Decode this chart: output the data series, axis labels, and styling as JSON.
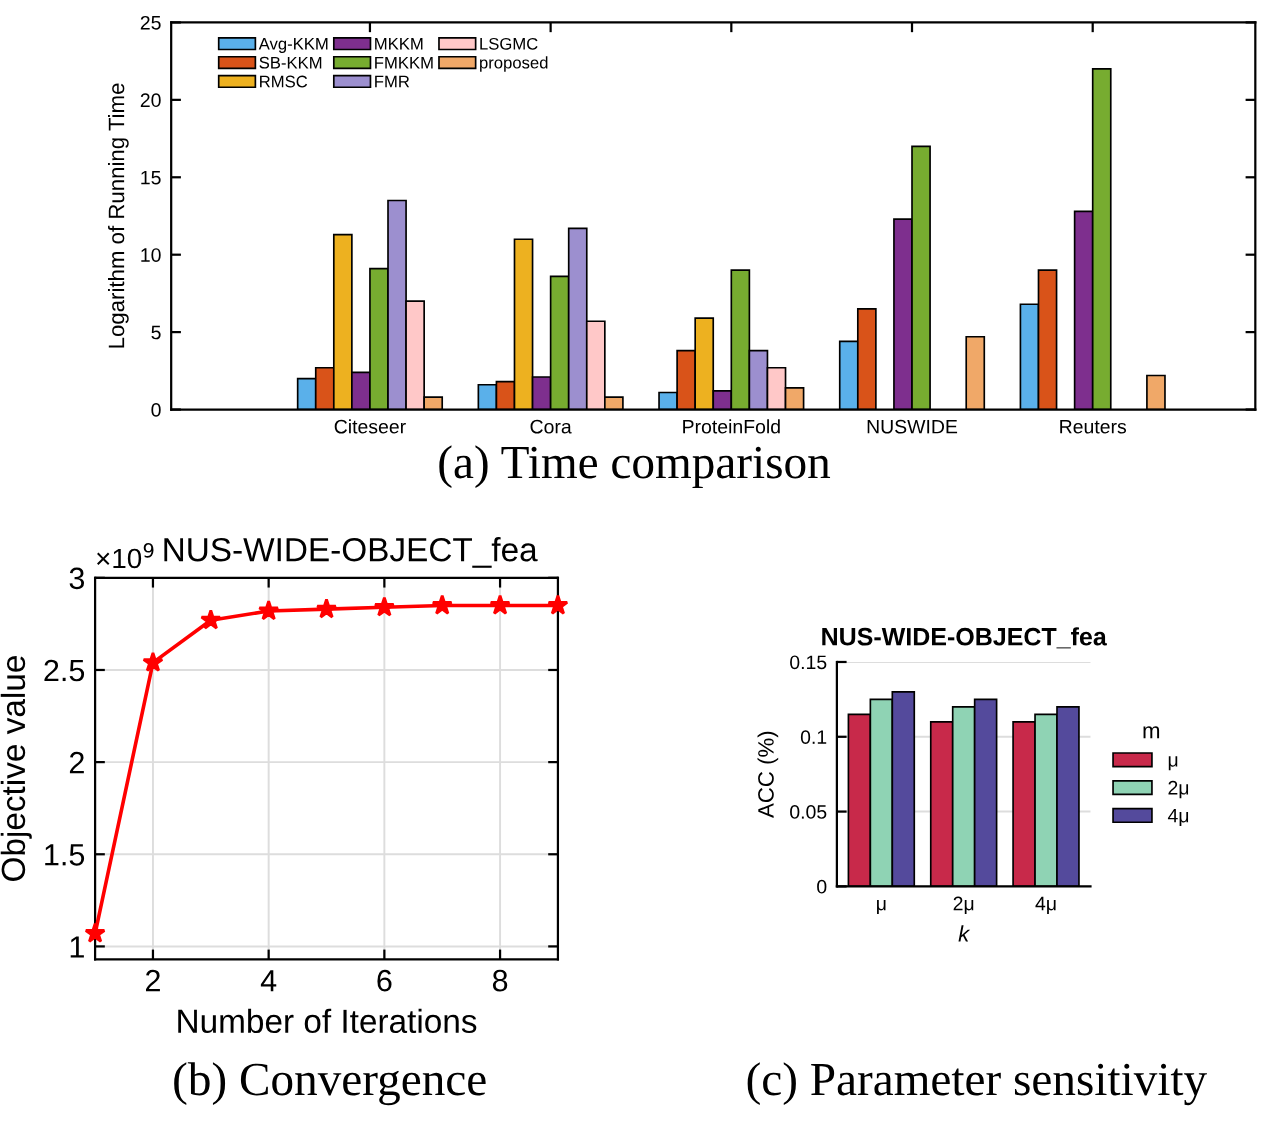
{
  "chart_data": [
    {
      "type": "bar",
      "ylabel": "Logarithm of Running Time",
      "categories": [
        "Citeseer",
        "Cora",
        "ProteinFold",
        "NUSWIDE",
        "Reuters"
      ],
      "series": [
        {
          "name": "Avg-KKM",
          "color": "#5ab0ea",
          "values": [
            2.0,
            1.6,
            1.1,
            4.4,
            6.8
          ]
        },
        {
          "name": "SB-KKM",
          "color": "#d95319",
          "values": [
            2.7,
            1.8,
            3.8,
            6.5,
            9.0
          ]
        },
        {
          "name": "RMSC",
          "color": "#edb120",
          "values": [
            11.3,
            11.0,
            5.9,
            null,
            null
          ]
        },
        {
          "name": "MKKM",
          "color": "#7e2f8e",
          "values": [
            2.4,
            2.1,
            1.2,
            12.3,
            12.8
          ]
        },
        {
          "name": "FMKKM",
          "color": "#77ac30",
          "values": [
            9.1,
            8.6,
            9.0,
            17.0,
            22.0
          ]
        },
        {
          "name": "FMR",
          "color": "#9c8fcf",
          "values": [
            13.5,
            11.7,
            3.8,
            null,
            null
          ]
        },
        {
          "name": "LSGMC",
          "color": "#ffc8c8",
          "values": [
            7.0,
            5.7,
            2.7,
            null,
            null
          ]
        },
        {
          "name": "proposed",
          "color": "#f0a868",
          "values": [
            0.8,
            0.8,
            1.4,
            4.7,
            2.2
          ]
        }
      ],
      "ylim": [
        0,
        25
      ],
      "yticks": [
        0,
        5,
        10,
        15,
        20,
        25
      ],
      "legend": "top left",
      "grid": false,
      "annotations": [
        "(a) Time comparison"
      ]
    },
    {
      "type": "line",
      "title": "NUS-WIDE-OBJECT_fea",
      "xlabel": "Number of Iterations",
      "ylabel": "Objective value",
      "x": [
        1,
        2,
        3,
        4,
        5,
        6,
        7,
        8,
        9
      ],
      "series": [
        {
          "color": "#ff0000",
          "values": [
            1.07,
            2.54,
            2.77,
            2.82,
            2.83,
            2.84,
            2.85,
            2.85,
            2.85
          ]
        }
      ],
      "xlim": [
        1,
        9
      ],
      "xticks": [
        2,
        4,
        6,
        8
      ],
      "ylim": [
        0.93,
        3
      ],
      "yticks": [
        1,
        1.5,
        2,
        2.5,
        3
      ],
      "grid": true,
      "marker": "star",
      "line_style": "solid",
      "annotations": [
        "×10$^{9}$",
        "(b) Convergence"
      ]
    },
    {
      "type": "bar",
      "title": "NUS-WIDE-OBJECT_fea",
      "xlabel": "k",
      "ylabel": "ACC (%)",
      "legend_title": "m",
      "categories": [
        "μ",
        "2μ",
        "4μ"
      ],
      "series": [
        {
          "name": "μ",
          "color": "#c8294a",
          "values": [
            0.115,
            0.11,
            0.11
          ]
        },
        {
          "name": "2μ",
          "color": "#8fd3b4",
          "values": [
            0.125,
            0.12,
            0.115
          ]
        },
        {
          "name": "4μ",
          "color": "#544a9c",
          "values": [
            0.13,
            0.125,
            0.12
          ]
        }
      ],
      "ylim": [
        0,
        0.15
      ],
      "yticks": [
        0,
        0.05,
        0.1,
        0.15
      ],
      "legend": "right",
      "grid": "y",
      "annotations": [
        "(c) Parameter sensitivity"
      ]
    }
  ]
}
